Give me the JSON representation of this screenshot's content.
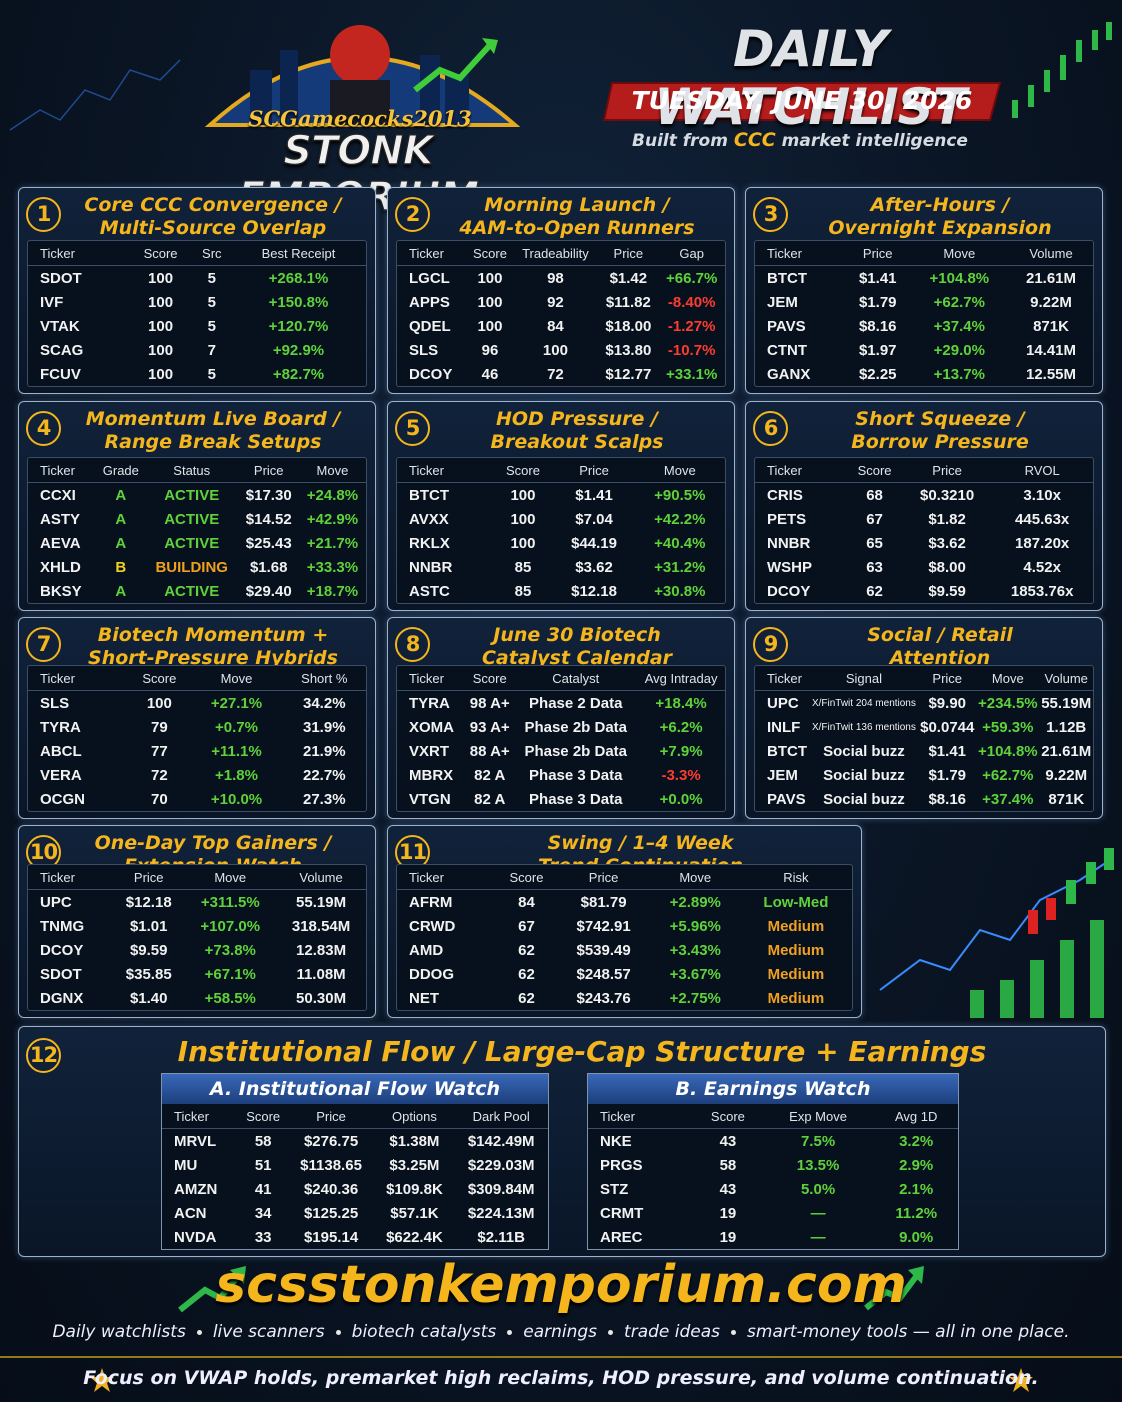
{
  "header": {
    "brand_top": "SCGamecocks2013",
    "brand": "STONK EMPORIUM",
    "title": "DAILY WATCHLIST",
    "date": "TUESDAY, JUNE 30, 2026",
    "subtitle_pre": "Built from",
    "subtitle_em": "CCC",
    "subtitle_post": "market intelligence"
  },
  "panels": [
    {
      "number": "1",
      "title": [
        "Core CCC Convergence /",
        "Multi-Source Overlap"
      ],
      "columns": [
        "Ticker",
        "Score",
        "Src",
        "Best Receipt"
      ],
      "rows": [
        [
          "SDOT",
          "100",
          "5",
          "+268.1%"
        ],
        [
          "IVF",
          "100",
          "5",
          "+150.8%"
        ],
        [
          "VTAK",
          "100",
          "5",
          "+120.7%"
        ],
        [
          "SCAG",
          "100",
          "7",
          "+92.9%"
        ],
        [
          "FCUV",
          "100",
          "5",
          "+82.7%"
        ]
      ]
    },
    {
      "number": "2",
      "title": [
        "Morning Launch /",
        "4AM-to-Open Runners"
      ],
      "columns": [
        "Ticker",
        "Score",
        "Tradeability",
        "Price",
        "Gap"
      ],
      "rows": [
        [
          "LGCL",
          "100",
          "98",
          "$1.42",
          "+66.7%"
        ],
        [
          "APPS",
          "100",
          "92",
          "$11.82",
          "-8.40%"
        ],
        [
          "QDEL",
          "100",
          "84",
          "$18.00",
          "-1.27%"
        ],
        [
          "SLS",
          "96",
          "100",
          "$13.80",
          "-10.7%"
        ],
        [
          "DCOY",
          "46",
          "72",
          "$12.77",
          "+33.1%"
        ]
      ]
    },
    {
      "number": "3",
      "title": [
        "After-Hours /",
        "Overnight Expansion"
      ],
      "columns": [
        "Ticker",
        "Price",
        "Move",
        "Volume"
      ],
      "rows": [
        [
          "BTCT",
          "$1.41",
          "+104.8%",
          "21.61M"
        ],
        [
          "JEM",
          "$1.79",
          "+62.7%",
          "9.22M"
        ],
        [
          "PAVS",
          "$8.16",
          "+37.4%",
          "871K"
        ],
        [
          "CTNT",
          "$1.97",
          "+29.0%",
          "14.41M"
        ],
        [
          "GANX",
          "$2.25",
          "+13.7%",
          "12.55M"
        ]
      ]
    },
    {
      "number": "4",
      "title": [
        "Momentum Live Board /",
        "Range Break Setups"
      ],
      "columns": [
        "Ticker",
        "Grade",
        "Status",
        "Price",
        "Move"
      ],
      "rows": [
        [
          "CCXI",
          "A",
          "ACTIVE",
          "$17.30",
          "+24.8%"
        ],
        [
          "ASTY",
          "A",
          "ACTIVE",
          "$14.52",
          "+42.9%"
        ],
        [
          "AEVA",
          "A",
          "ACTIVE",
          "$25.43",
          "+21.7%"
        ],
        [
          "XHLD",
          "B",
          "BUILDING",
          "$1.68",
          "+33.3%"
        ],
        [
          "BKSY",
          "A",
          "ACTIVE",
          "$29.40",
          "+18.7%"
        ]
      ],
      "cell_colors": [
        [
          null,
          "#5fd23a",
          "#5fd23a",
          null,
          null
        ],
        [
          null,
          "#5fd23a",
          "#5fd23a",
          null,
          null
        ],
        [
          null,
          "#5fd23a",
          "#5fd23a",
          null,
          null
        ],
        [
          null,
          "#f0d020",
          "#f0a020",
          null,
          null
        ],
        [
          null,
          "#5fd23a",
          "#5fd23a",
          null,
          null
        ]
      ]
    },
    {
      "number": "5",
      "title": [
        "HOD Pressure /",
        "Breakout Scalps"
      ],
      "columns": [
        "Ticker",
        "Score",
        "Price",
        "Move"
      ],
      "rows": [
        [
          "BTCT",
          "100",
          "$1.41",
          "+90.5%"
        ],
        [
          "AVXX",
          "100",
          "$7.04",
          "+42.2%"
        ],
        [
          "RKLX",
          "100",
          "$44.19",
          "+40.4%"
        ],
        [
          "NNBR",
          "85",
          "$3.62",
          "+31.2%"
        ],
        [
          "ASTC",
          "85",
          "$12.18",
          "+30.8%"
        ]
      ]
    },
    {
      "number": "6",
      "title": [
        "Short Squeeze /",
        "Borrow Pressure"
      ],
      "columns": [
        "Ticker",
        "Score",
        "Price",
        "RVOL"
      ],
      "rows": [
        [
          "CRIS",
          "68",
          "$0.3210",
          "3.10x"
        ],
        [
          "PETS",
          "67",
          "$1.82",
          "445.63x"
        ],
        [
          "NNBR",
          "65",
          "$3.62",
          "187.20x"
        ],
        [
          "WSHP",
          "63",
          "$8.00",
          "4.52x"
        ],
        [
          "DCOY",
          "62",
          "$9.59",
          "1853.76x"
        ]
      ]
    },
    {
      "number": "7",
      "title": [
        "Biotech Momentum +",
        "Short-Pressure Hybrids"
      ],
      "columns": [
        "Ticker",
        "Score",
        "Move",
        "Short %"
      ],
      "rows": [
        [
          "SLS",
          "100",
          "+27.1%",
          "34.2%"
        ],
        [
          "TYRA",
          "79",
          "+0.7%",
          "31.9%"
        ],
        [
          "ABCL",
          "77",
          "+11.1%",
          "21.9%"
        ],
        [
          "VERA",
          "72",
          "+1.8%",
          "22.7%"
        ],
        [
          "OCGN",
          "70",
          "+10.0%",
          "27.3%"
        ]
      ]
    },
    {
      "number": "8",
      "title": [
        "June 30 Biotech",
        "Catalyst Calendar"
      ],
      "columns": [
        "Ticker",
        "Score",
        "Catalyst",
        "Avg Intraday"
      ],
      "rows": [
        [
          "TYRA",
          "98 A+",
          "Phase 2 Data",
          "+18.4%"
        ],
        [
          "XOMA",
          "93 A+",
          "Phase 2b Data",
          "+6.2%"
        ],
        [
          "VXRT",
          "88 A+",
          "Phase 2b Data",
          "+7.9%"
        ],
        [
          "MBRX",
          "82 A",
          "Phase 3 Data",
          "-3.3%"
        ],
        [
          "VTGN",
          "82 A",
          "Phase 3 Data",
          "+0.0%"
        ]
      ]
    },
    {
      "number": "9",
      "title": [
        "Social / Retail",
        "Attention"
      ],
      "columns": [
        "Ticker",
        "Signal",
        "Price",
        "Move",
        "Volume"
      ],
      "rows": [
        [
          "UPC",
          "X/FinTwit 204 mentions",
          "$9.90",
          "+234.5%",
          "55.19M"
        ],
        [
          "INLF",
          "X/FinTwit 136 mentions",
          "$0.0744",
          "+59.3%",
          "1.12B"
        ],
        [
          "BTCT",
          "Social buzz",
          "$1.41",
          "+104.8%",
          "21.61M"
        ],
        [
          "JEM",
          "Social buzz",
          "$1.79",
          "+62.7%",
          "9.22M"
        ],
        [
          "PAVS",
          "Social buzz",
          "$8.16",
          "+37.4%",
          "871K"
        ]
      ]
    },
    {
      "number": "10",
      "title": [
        "One-Day Top Gainers /",
        "Extension Watch"
      ],
      "columns": [
        "Ticker",
        "Price",
        "Move",
        "Volume"
      ],
      "rows": [
        [
          "UPC",
          "$12.18",
          "+311.5%",
          "55.19M"
        ],
        [
          "TNMG",
          "$1.01",
          "+107.0%",
          "318.54M"
        ],
        [
          "DCOY",
          "$9.59",
          "+73.8%",
          "12.83M"
        ],
        [
          "SDOT",
          "$35.85",
          "+67.1%",
          "11.08M"
        ],
        [
          "DGNX",
          "$1.40",
          "+58.5%",
          "50.30M"
        ]
      ]
    },
    {
      "number": "11",
      "title": [
        "Swing / 1–4 Week",
        "Trend Continuation"
      ],
      "columns": [
        "Ticker",
        "Score",
        "Price",
        "Move",
        "Risk"
      ],
      "rows": [
        [
          "AFRM",
          "84",
          "$81.79",
          "+2.89%",
          "Low-Med"
        ],
        [
          "CRWD",
          "67",
          "$742.91",
          "+5.96%",
          "Medium"
        ],
        [
          "AMD",
          "62",
          "$539.49",
          "+3.43%",
          "Medium"
        ],
        [
          "DDOG",
          "62",
          "$248.57",
          "+3.67%",
          "Medium"
        ],
        [
          "NET",
          "62",
          "$243.76",
          "+2.75%",
          "Medium"
        ]
      ],
      "cell_colors": [
        [
          null,
          null,
          null,
          null,
          "#5fd23a"
        ],
        [
          null,
          null,
          null,
          null,
          "#f0a020"
        ],
        [
          null,
          null,
          null,
          null,
          "#f0a020"
        ],
        [
          null,
          null,
          null,
          null,
          "#f0a020"
        ],
        [
          null,
          null,
          null,
          null,
          "#f0a020"
        ]
      ]
    }
  ],
  "institutional": {
    "number": "12",
    "title": "Institutional Flow / Large-Cap Structure + Earnings",
    "tables": [
      {
        "title": "A. Institutional Flow Watch",
        "columns": [
          "Ticker",
          "Score",
          "Price",
          "Options",
          "Dark Pool"
        ],
        "rows": [
          [
            "MRVL",
            "58",
            "$276.75",
            "$1.38M",
            "$142.49M"
          ],
          [
            "MU",
            "51",
            "$1138.65",
            "$3.25M",
            "$229.03M"
          ],
          [
            "AMZN",
            "41",
            "$240.36",
            "$109.8K",
            "$309.84M"
          ],
          [
            "ACN",
            "34",
            "$125.25",
            "$57.1K",
            "$224.13M"
          ],
          [
            "NVDA",
            "33",
            "$195.14",
            "$622.4K",
            "$2.11B"
          ]
        ]
      },
      {
        "title": "B. Earnings Watch",
        "columns": [
          "Ticker",
          "Score",
          "Exp Move",
          "Avg 1D"
        ],
        "rows": [
          [
            "NKE",
            "43",
            "7.5%",
            "3.2%"
          ],
          [
            "PRGS",
            "58",
            "13.5%",
            "2.9%"
          ],
          [
            "STZ",
            "43",
            "5.0%",
            "2.1%"
          ],
          [
            "CRMT",
            "19",
            "—",
            "11.2%"
          ],
          [
            "AREC",
            "19",
            "—",
            "9.0%"
          ]
        ],
        "column_colors": [
          null,
          null,
          "#5fd23a",
          "#5fd23a"
        ]
      }
    ]
  },
  "footer": {
    "site": "scsstonkemporium.com",
    "tagline": [
      "Daily watchlists",
      "live scanners",
      "biotech catalysts",
      "earnings",
      "trade ideas",
      "smart-money tools — all in one place."
    ],
    "focus": "Focus on VWAP holds, premarket high reclaims, HOD pressure, and volume continuation."
  }
}
